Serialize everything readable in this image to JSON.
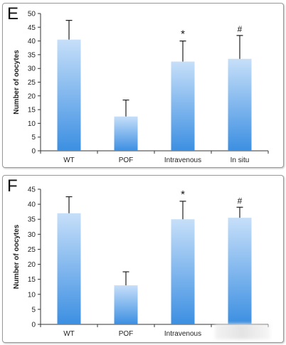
{
  "chart_data": [
    {
      "panel_label": "E",
      "type": "bar",
      "title": "",
      "xlabel": "",
      "ylabel": "Number of oocytes",
      "categories": [
        "WT",
        "POF",
        "Intravenous",
        "In situ"
      ],
      "values": [
        40.5,
        12.5,
        32.5,
        33.5
      ],
      "error": [
        7,
        6,
        7.5,
        8.5
      ],
      "annotations": [
        "",
        "",
        "*",
        "#"
      ],
      "ylim": [
        0,
        50
      ],
      "yticks": [
        0,
        5,
        10,
        15,
        20,
        25,
        30,
        35,
        40,
        45,
        50
      ],
      "grid": false,
      "bar_color_top": "#c6dff9",
      "bar_color_bottom": "#3c8fe2"
    },
    {
      "panel_label": "F",
      "type": "bar",
      "title": "",
      "xlabel": "",
      "ylabel": "Number of oocytes",
      "categories": [
        "WT",
        "POF",
        "Intravenous",
        ""
      ],
      "values": [
        37,
        13,
        35,
        35.5
      ],
      "error": [
        5.5,
        4.5,
        6,
        3.5
      ],
      "annotations": [
        "",
        "",
        "*",
        "#"
      ],
      "ylim": [
        0,
        45
      ],
      "yticks": [
        0,
        5,
        10,
        15,
        20,
        25,
        30,
        35,
        40,
        45
      ],
      "grid": false,
      "bar_color_top": "#c6dff9",
      "bar_color_bottom": "#3c8fe2"
    }
  ]
}
